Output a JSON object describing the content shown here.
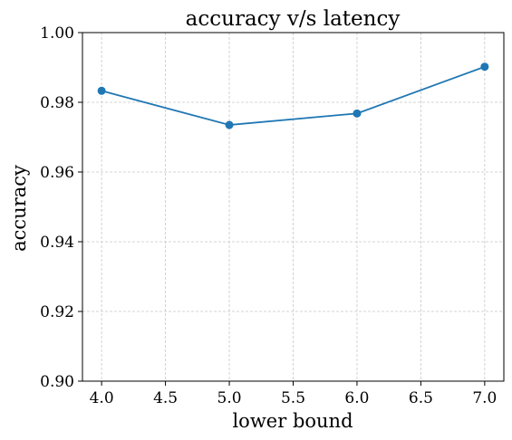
{
  "chart_data": {
    "type": "line",
    "title": "accuracy v/s latency",
    "xlabel": "lower bound",
    "ylabel": "accuracy",
    "xlim": [
      3.85,
      7.15
    ],
    "ylim": [
      0.9,
      1.0
    ],
    "xticks": [
      4.0,
      4.5,
      5.0,
      5.5,
      6.0,
      6.5,
      7.0
    ],
    "xtick_labels": [
      "4.0",
      "4.5",
      "5.0",
      "5.5",
      "6.0",
      "6.5",
      "7.0"
    ],
    "yticks": [
      0.9,
      0.92,
      0.94,
      0.96,
      0.98,
      1.0
    ],
    "ytick_labels": [
      "0.90",
      "0.92",
      "0.94",
      "0.96",
      "0.98",
      "1.00"
    ],
    "grid": true,
    "series": [
      {
        "color": "#1f77b4",
        "marker": "circle",
        "x": [
          4.0,
          5.0,
          6.0,
          7.0
        ],
        "y": [
          0.9833,
          0.9735,
          0.9768,
          0.9902
        ]
      }
    ]
  }
}
